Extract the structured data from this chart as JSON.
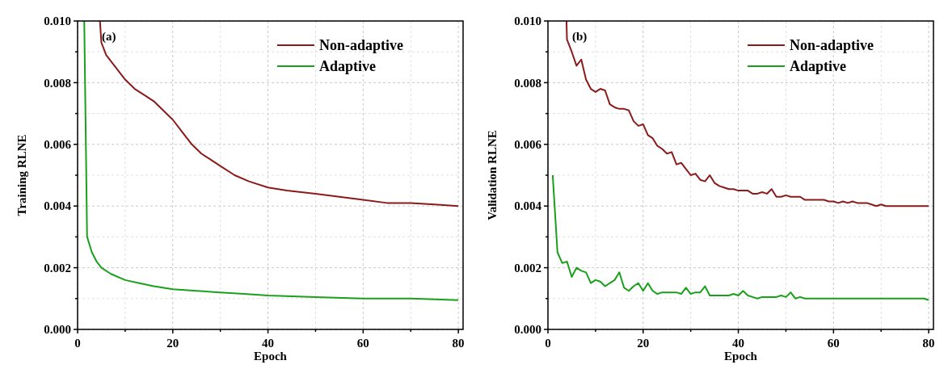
{
  "chart_data": [
    {
      "type": "line",
      "title": "(a)",
      "xlabel": "Epoch",
      "ylabel": "Training RLNE",
      "xlim": [
        0,
        81
      ],
      "ylim": [
        0,
        0.01
      ],
      "xticks": [
        0,
        {
          "value": 10,
          "label": null
        },
        20,
        {
          "value": 30,
          "label": null
        },
        40,
        {
          "value": 50,
          "label": null
        },
        60,
        {
          "value": 70,
          "label": null
        },
        80
      ],
      "yticks": [
        {
          "value": 0,
          "label": "0.000"
        },
        {
          "value": 0.001,
          "label": null
        },
        {
          "value": 0.002,
          "label": "0.002"
        },
        {
          "value": 0.003,
          "label": null
        },
        {
          "value": 0.004,
          "label": "0.004"
        },
        {
          "value": 0.005,
          "label": null
        },
        {
          "value": 0.006,
          "label": "0.006"
        },
        {
          "value": 0.007,
          "label": null
        },
        {
          "value": 0.008,
          "label": "0.008"
        },
        {
          "value": 0.009,
          "label": null
        },
        {
          "value": 0.01,
          "label": "0.010"
        }
      ],
      "grid": true,
      "legend": "top right",
      "marker": "none",
      "line_style": "solid",
      "series": [
        {
          "name": "Non-adaptive",
          "color": "#8b1a1a",
          "x": [
            4.7,
            5,
            6,
            8,
            10,
            12,
            14,
            16,
            18,
            20,
            22,
            24,
            26,
            28,
            30,
            33,
            36,
            40,
            44,
            50,
            55,
            60,
            65,
            70,
            75,
            80
          ],
          "values": [
            0.01,
            0.0093,
            0.0089,
            0.0085,
            0.0081,
            0.0078,
            0.0076,
            0.0074,
            0.0071,
            0.0068,
            0.0064,
            0.006,
            0.0057,
            0.0055,
            0.0053,
            0.005,
            0.0048,
            0.0046,
            0.0045,
            0.0044,
            0.0043,
            0.0042,
            0.0041,
            0.0041,
            0.00405,
            0.004
          ]
        },
        {
          "name": "Adaptive",
          "color": "#1aa01a",
          "x": [
            1.4,
            2,
            3,
            4,
            5,
            7,
            10,
            13,
            16,
            20,
            25,
            30,
            35,
            40,
            50,
            60,
            70,
            80
          ],
          "values": [
            0.01,
            0.003,
            0.0025,
            0.0022,
            0.002,
            0.0018,
            0.0016,
            0.0015,
            0.0014,
            0.0013,
            0.00125,
            0.0012,
            0.00115,
            0.0011,
            0.00105,
            0.001,
            0.001,
            0.00095
          ]
        }
      ]
    },
    {
      "type": "line",
      "title": "(b)",
      "xlabel": "Epoch",
      "ylabel": "Validation RLNE",
      "xlim": [
        0,
        81
      ],
      "ylim": [
        0,
        0.01
      ],
      "xticks": [
        0,
        {
          "value": 10,
          "label": null
        },
        20,
        {
          "value": 30,
          "label": null
        },
        40,
        {
          "value": 50,
          "label": null
        },
        60,
        {
          "value": 70,
          "label": null
        },
        80
      ],
      "yticks": [
        {
          "value": 0,
          "label": "0.000"
        },
        {
          "value": 0.001,
          "label": null
        },
        {
          "value": 0.002,
          "label": "0.002"
        },
        {
          "value": 0.003,
          "label": null
        },
        {
          "value": 0.004,
          "label": "0.004"
        },
        {
          "value": 0.005,
          "label": null
        },
        {
          "value": 0.006,
          "label": "0.006"
        },
        {
          "value": 0.007,
          "label": null
        },
        {
          "value": 0.008,
          "label": "0.008"
        },
        {
          "value": 0.009,
          "label": null
        },
        {
          "value": 0.01,
          "label": "0.010"
        }
      ],
      "grid": true,
      "legend": "top right",
      "marker": "none",
      "line_style": "solid",
      "series": [
        {
          "name": "Non-adaptive",
          "color": "#8b1a1a",
          "x": [
            3.9,
            4,
            5,
            6,
            7,
            8,
            9,
            10,
            11,
            12,
            13,
            14,
            15,
            16,
            17,
            18,
            19,
            20,
            21,
            22,
            23,
            24,
            25,
            26,
            27,
            28,
            29,
            30,
            31,
            32,
            33,
            34,
            35,
            36,
            37,
            38,
            39,
            40,
            41,
            42,
            43,
            44,
            45,
            46,
            47,
            48,
            49,
            50,
            51,
            52,
            53,
            54,
            55,
            56,
            57,
            58,
            59,
            60,
            61,
            62,
            63,
            64,
            65,
            66,
            67,
            68,
            69,
            70,
            71,
            72,
            73,
            74,
            75,
            76,
            77,
            78,
            79,
            80
          ],
          "values": [
            0.01,
            0.0094,
            0.009,
            0.00855,
            0.00875,
            0.0081,
            0.0078,
            0.0077,
            0.0078,
            0.00775,
            0.0073,
            0.0072,
            0.00715,
            0.00715,
            0.0071,
            0.00675,
            0.0066,
            0.00665,
            0.0063,
            0.0062,
            0.00595,
            0.00585,
            0.0057,
            0.00575,
            0.00535,
            0.0054,
            0.0052,
            0.005,
            0.00505,
            0.00485,
            0.0048,
            0.005,
            0.00475,
            0.00465,
            0.0046,
            0.00455,
            0.00455,
            0.0045,
            0.0045,
            0.0045,
            0.0044,
            0.0044,
            0.00445,
            0.0044,
            0.00455,
            0.0043,
            0.0043,
            0.00435,
            0.0043,
            0.0043,
            0.0043,
            0.0042,
            0.0042,
            0.0042,
            0.0042,
            0.0042,
            0.00415,
            0.00415,
            0.0041,
            0.00415,
            0.0041,
            0.00415,
            0.0041,
            0.0041,
            0.0041,
            0.00405,
            0.004,
            0.00405,
            0.004,
            0.004,
            0.004,
            0.004,
            0.004,
            0.004,
            0.004,
            0.004,
            0.004,
            0.004
          ]
        },
        {
          "name": "Adaptive",
          "color": "#1aa01a",
          "x": [
            1,
            2,
            3,
            4,
            5,
            6,
            7,
            8,
            9,
            10,
            11,
            12,
            13,
            14,
            15,
            16,
            17,
            18,
            19,
            20,
            21,
            22,
            23,
            24,
            25,
            26,
            27,
            28,
            29,
            30,
            31,
            32,
            33,
            34,
            35,
            36,
            37,
            38,
            39,
            40,
            41,
            42,
            43,
            44,
            45,
            46,
            47,
            48,
            49,
            50,
            51,
            52,
            53,
            54,
            55,
            56,
            57,
            58,
            59,
            60,
            61,
            62,
            63,
            64,
            65,
            66,
            67,
            68,
            69,
            70,
            71,
            72,
            73,
            74,
            75,
            76,
            77,
            78,
            79,
            80
          ],
          "values": [
            0.005,
            0.0025,
            0.00215,
            0.0022,
            0.0017,
            0.002,
            0.0019,
            0.00185,
            0.0015,
            0.0016,
            0.00155,
            0.0014,
            0.0015,
            0.0016,
            0.00185,
            0.00135,
            0.00125,
            0.0014,
            0.0015,
            0.00125,
            0.0015,
            0.00125,
            0.00115,
            0.0012,
            0.0012,
            0.0012,
            0.0012,
            0.00115,
            0.00135,
            0.00115,
            0.0012,
            0.0012,
            0.0014,
            0.0011,
            0.0011,
            0.0011,
            0.0011,
            0.0011,
            0.00115,
            0.0011,
            0.00125,
            0.0011,
            0.00105,
            0.001,
            0.00105,
            0.00105,
            0.00105,
            0.00105,
            0.0011,
            0.00105,
            0.0012,
            0.001,
            0.00105,
            0.001,
            0.001,
            0.001,
            0.001,
            0.001,
            0.001,
            0.001,
            0.001,
            0.001,
            0.001,
            0.001,
            0.001,
            0.001,
            0.001,
            0.001,
            0.001,
            0.001,
            0.001,
            0.001,
            0.001,
            0.001,
            0.001,
            0.001,
            0.001,
            0.001,
            0.001,
            0.00095
          ]
        }
      ]
    }
  ]
}
